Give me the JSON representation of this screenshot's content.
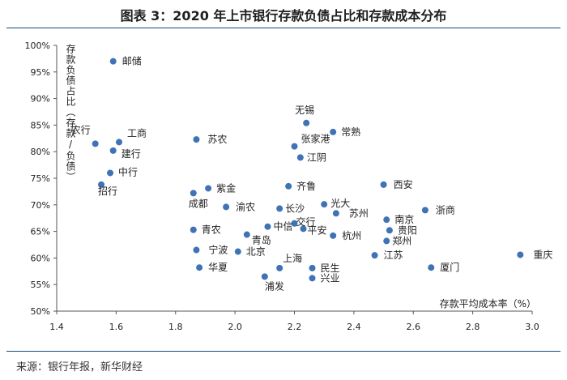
{
  "title": "图表 3：2020 年上市银行存款负债占比和存款成本分布",
  "source": "来源：银行年报，新华财经",
  "chart_data": {
    "type": "scatter",
    "xlabel": "存款平均成本率（%）",
    "ylabel": "存款负债占比（存款/负债）",
    "xlim": [
      1.4,
      3.0
    ],
    "ylim": [
      50,
      100
    ],
    "xticks": [
      "1.4",
      "1.6",
      "1.8",
      "2.0",
      "2.2",
      "2.4",
      "2.6",
      "2.8",
      "3.0"
    ],
    "yticks": [
      "50%",
      "55%",
      "60%",
      "65%",
      "70%",
      "75%",
      "80%",
      "85%",
      "90%",
      "95%",
      "100%"
    ],
    "grid": false,
    "legend": "none",
    "point_color": "#3f73b5",
    "points": [
      {
        "name": "邮储",
        "x": 1.59,
        "y": 97.0
      },
      {
        "name": "农行",
        "x": 1.53,
        "y": 81.5
      },
      {
        "name": "工商",
        "x": 1.61,
        "y": 81.8
      },
      {
        "name": "建行",
        "x": 1.59,
        "y": 80.2
      },
      {
        "name": "中行",
        "x": 1.58,
        "y": 76.0
      },
      {
        "name": "招行",
        "x": 1.55,
        "y": 73.8
      },
      {
        "name": "苏农",
        "x": 1.87,
        "y": 82.3
      },
      {
        "name": "紫金",
        "x": 1.91,
        "y": 73.1
      },
      {
        "name": "成都",
        "x": 1.86,
        "y": 72.2
      },
      {
        "name": "渝农",
        "x": 1.97,
        "y": 69.6
      },
      {
        "name": "青农",
        "x": 1.86,
        "y": 65.3
      },
      {
        "name": "青岛",
        "x": 2.04,
        "y": 64.4
      },
      {
        "name": "中信",
        "x": 2.11,
        "y": 65.9
      },
      {
        "name": "宁波",
        "x": 1.87,
        "y": 61.5
      },
      {
        "name": "北京",
        "x": 2.01,
        "y": 61.2
      },
      {
        "name": "华夏",
        "x": 1.88,
        "y": 58.2
      },
      {
        "name": "上海",
        "x": 2.15,
        "y": 58.1
      },
      {
        "name": "浦发",
        "x": 2.1,
        "y": 56.5
      },
      {
        "name": "无锡",
        "x": 2.24,
        "y": 85.4
      },
      {
        "name": "常熟",
        "x": 2.33,
        "y": 83.7
      },
      {
        "name": "张家港",
        "x": 2.2,
        "y": 81.0
      },
      {
        "name": "江阴",
        "x": 2.22,
        "y": 78.9
      },
      {
        "name": "齐鲁",
        "x": 2.18,
        "y": 73.5
      },
      {
        "name": "长沙",
        "x": 2.15,
        "y": 69.3
      },
      {
        "name": "光大",
        "x": 2.3,
        "y": 70.1
      },
      {
        "name": "苏州",
        "x": 2.34,
        "y": 68.4
      },
      {
        "name": "交行",
        "x": 2.2,
        "y": 66.5
      },
      {
        "name": "平安",
        "x": 2.23,
        "y": 65.5
      },
      {
        "name": "杭州",
        "x": 2.33,
        "y": 64.2
      },
      {
        "name": "民生",
        "x": 2.26,
        "y": 58.1
      },
      {
        "name": "兴业",
        "x": 2.26,
        "y": 56.2
      },
      {
        "name": "西安",
        "x": 2.5,
        "y": 73.8
      },
      {
        "name": "浙商",
        "x": 2.64,
        "y": 69.0
      },
      {
        "name": "南京",
        "x": 2.51,
        "y": 67.2
      },
      {
        "name": "贵阳",
        "x": 2.52,
        "y": 65.2
      },
      {
        "name": "郑州",
        "x": 2.51,
        "y": 63.2
      },
      {
        "name": "江苏",
        "x": 2.47,
        "y": 60.5
      },
      {
        "name": "厦门",
        "x": 2.66,
        "y": 58.2
      },
      {
        "name": "重庆",
        "x": 2.96,
        "y": 60.6
      }
    ]
  }
}
